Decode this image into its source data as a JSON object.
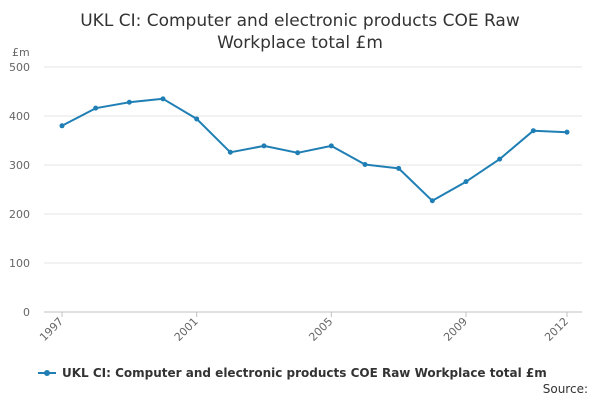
{
  "chart_data": {
    "type": "line",
    "title_lines": [
      "UKL CI: Computer and electronic products COE Raw",
      "Workplace total £m"
    ],
    "y_unit": "£m",
    "x": [
      1997,
      1998,
      1999,
      2000,
      2001,
      2002,
      2003,
      2004,
      2005,
      2006,
      2007,
      2008,
      2009,
      2010,
      2011,
      2012
    ],
    "x_tick_labels": [
      "1997",
      "2001",
      "2005",
      "2009",
      "2012"
    ],
    "y_ticks": [
      0,
      100,
      200,
      300,
      400,
      500
    ],
    "ylim": [
      0,
      500
    ],
    "series": [
      {
        "name": "UKL CI: Computer and electronic products COE Raw Workplace total £m",
        "color": "#1f7fb5",
        "values": [
          380,
          416,
          428,
          435,
          394,
          326,
          339,
          325,
          339,
          301,
          293,
          227,
          266,
          312,
          370,
          367
        ]
      }
    ],
    "grid": true,
    "legend_position": "bottom-left",
    "source_label": "Source:"
  }
}
